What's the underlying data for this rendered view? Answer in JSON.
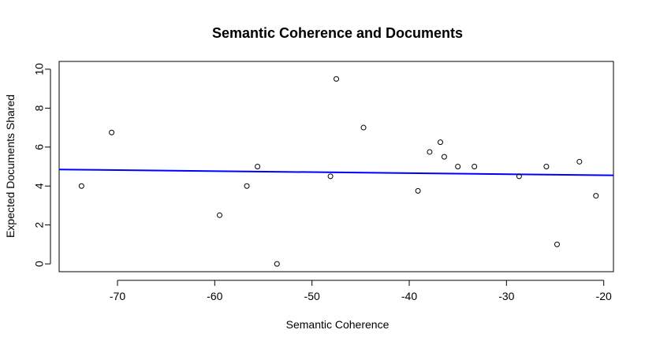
{
  "chart_data": {
    "type": "scatter",
    "title": "Semantic Coherence and Documents",
    "xlabel": "Semantic Coherence",
    "ylabel": "Expected Documents Shared",
    "xlim": [
      -76,
      -19
    ],
    "ylim": [
      -0.4,
      10.4
    ],
    "x_ticks": [
      -70,
      -60,
      -50,
      -40,
      -30,
      -20
    ],
    "y_ticks": [
      0,
      2,
      4,
      6,
      8,
      10
    ],
    "grid": false,
    "legend": "none",
    "points": [
      {
        "x": -73.7,
        "y": 4.0
      },
      {
        "x": -70.6,
        "y": 6.75
      },
      {
        "x": -59.5,
        "y": 2.5
      },
      {
        "x": -56.7,
        "y": 4.0
      },
      {
        "x": -55.6,
        "y": 5.0
      },
      {
        "x": -53.6,
        "y": 0.0
      },
      {
        "x": -48.1,
        "y": 4.5
      },
      {
        "x": -47.5,
        "y": 9.5
      },
      {
        "x": -44.7,
        "y": 7.0
      },
      {
        "x": -39.1,
        "y": 3.75
      },
      {
        "x": -37.9,
        "y": 5.75
      },
      {
        "x": -36.8,
        "y": 6.25
      },
      {
        "x": -36.4,
        "y": 5.5
      },
      {
        "x": -35.0,
        "y": 5.0
      },
      {
        "x": -33.3,
        "y": 5.0
      },
      {
        "x": -28.7,
        "y": 4.5
      },
      {
        "x": -25.9,
        "y": 5.0
      },
      {
        "x": -24.8,
        "y": 1.0
      },
      {
        "x": -22.5,
        "y": 5.25
      },
      {
        "x": -20.8,
        "y": 3.5
      }
    ],
    "fit_line": {
      "x": [
        -76,
        -19
      ],
      "y": [
        4.85,
        4.55
      ]
    },
    "colors": {
      "points": "#000000",
      "fit_line": "#0000ff",
      "axes": "#000000"
    }
  }
}
